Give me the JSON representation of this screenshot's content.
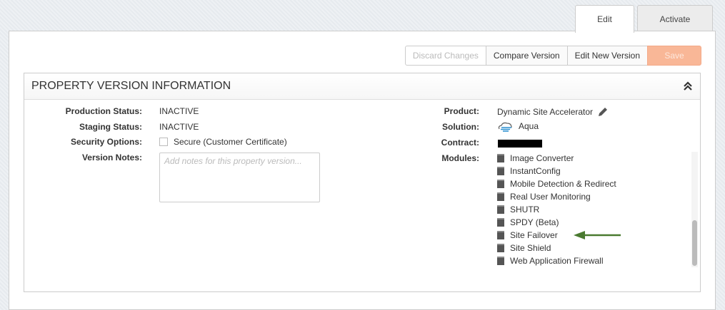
{
  "tabs": [
    {
      "label": "Edit",
      "active": true
    },
    {
      "label": "Activate",
      "active": false
    }
  ],
  "toolbar": {
    "discard": "Discard Changes",
    "compare": "Compare Version",
    "edit_new": "Edit New Version",
    "save": "Save",
    "save_color": "#f9b797"
  },
  "section": {
    "title": "PROPERTY VERSION INFORMATION",
    "collapse_icon": "double-chevron-up"
  },
  "left": {
    "production_label": "Production Status:",
    "production": "INACTIVE",
    "staging_label": "Staging Status:",
    "staging": "INACTIVE",
    "security_label": "Security Options:",
    "security_option": "Secure (Customer Certificate)",
    "security_checked": false,
    "notes_label": "Version Notes:",
    "notes_placeholder": "Add notes for this property version..."
  },
  "right": {
    "product_label": "Product:",
    "product": "Dynamic Site Accelerator",
    "solution_label": "Solution:",
    "solution": "Aqua",
    "contract_label": "Contract:",
    "modules_label": "Modules:",
    "modules": [
      "Image Converter",
      "InstantConfig",
      "Mobile Detection & Redirect",
      "Real User Monitoring",
      "SHUTR",
      "SPDY (Beta)",
      "Site Failover",
      "Site Shield",
      "Web Application Firewall"
    ],
    "arrow_color": "#4a7a30"
  }
}
